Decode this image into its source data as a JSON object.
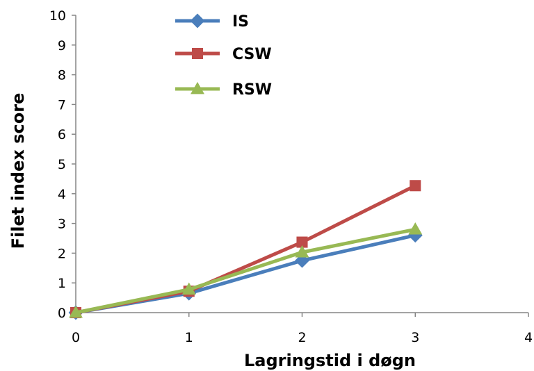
{
  "chart_data": {
    "type": "line",
    "xlabel": "Lagringstid i døgn",
    "ylabel": "Filet index score",
    "xlim": [
      0,
      4
    ],
    "ylim": [
      0,
      10
    ],
    "xticks": [
      "0",
      "1",
      "2",
      "3",
      "4"
    ],
    "yticks": [
      "0",
      "1",
      "2",
      "3",
      "4",
      "5",
      "6",
      "7",
      "8",
      "9",
      "10"
    ],
    "grid": false,
    "legend_position": "top-left",
    "series": [
      {
        "name": "IS",
        "color": "#4a7ebb",
        "marker": "diamond",
        "x": [
          0,
          1,
          2,
          3
        ],
        "y": [
          0,
          0.65,
          1.75,
          2.6
        ]
      },
      {
        "name": "CSW",
        "color": "#be4b48",
        "marker": "square",
        "x": [
          0,
          1,
          2,
          3
        ],
        "y": [
          0,
          0.72,
          2.37,
          4.27
        ]
      },
      {
        "name": "RSW",
        "color": "#98b954",
        "marker": "triangle",
        "x": [
          0,
          1,
          2,
          3
        ],
        "y": [
          0,
          0.78,
          2.03,
          2.8
        ]
      }
    ]
  }
}
